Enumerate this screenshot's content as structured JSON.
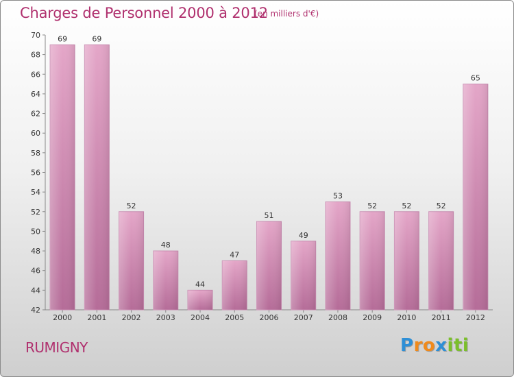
{
  "title": "Charges de Personnel 2000 à 2012",
  "subtitle": "(en milliers d'€)",
  "town": "RUMIGNY",
  "logo": {
    "letters": [
      "P",
      "r",
      "o",
      "x",
      "i",
      "t",
      "i"
    ],
    "colors": [
      "#2e8fd6",
      "#f08a1c",
      "#f08a1c",
      "#2e8fd6",
      "#7bbf2a",
      "#7bbf2a",
      "#7bbf2a"
    ]
  },
  "chart_data": {
    "type": "bar",
    "categories": [
      "2000",
      "2001",
      "2002",
      "2003",
      "2004",
      "2005",
      "2006",
      "2007",
      "2008",
      "2009",
      "2010",
      "2011",
      "2012"
    ],
    "values": [
      69,
      69,
      52,
      48,
      44,
      47,
      51,
      49,
      53,
      52,
      52,
      52,
      65
    ],
    "title": "Charges de Personnel 2000 à 2012",
    "ylim": [
      42,
      70
    ],
    "yticks": [
      42,
      44,
      46,
      48,
      50,
      52,
      54,
      56,
      58,
      60,
      62,
      64,
      66,
      68,
      70
    ],
    "grid": false,
    "bar_color": "#d98ab5"
  }
}
